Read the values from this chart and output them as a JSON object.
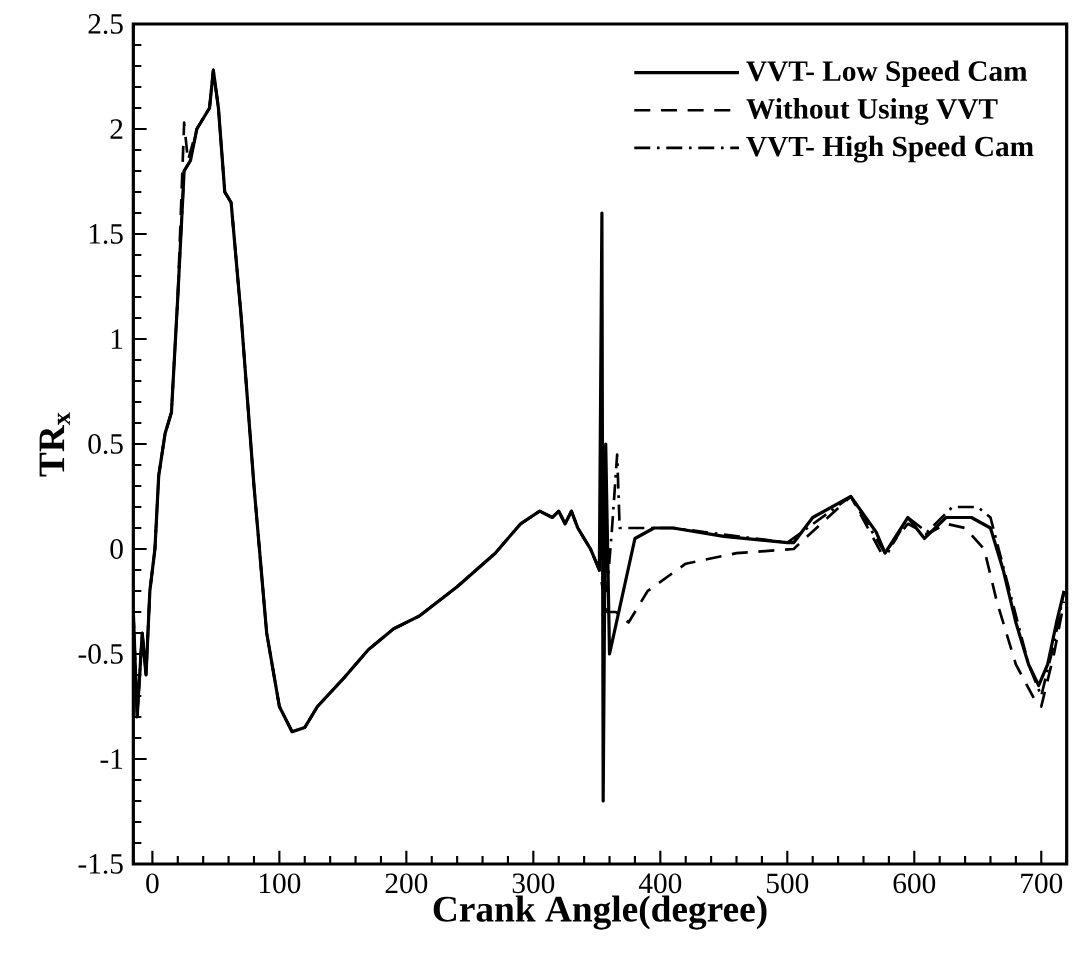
{
  "chart_data": {
    "type": "line",
    "xlabel": "Crank Angle(degree)",
    "ylabel": "TR$_{x}$",
    "xlim": [
      -15,
      720
    ],
    "ylim": [
      -1.5,
      2.5
    ],
    "xticks": [
      0,
      100,
      200,
      300,
      400,
      500,
      600,
      700
    ],
    "yticks": [
      -1.5,
      -1,
      -0.5,
      0,
      0.5,
      1,
      1.5,
      2,
      2.5
    ],
    "legend": "top right",
    "grid": false,
    "marker": "none",
    "series": [
      {
        "name": "VVT- Low Speed Cam",
        "color": "#000000",
        "line_style": "solid",
        "x": [
          -15,
          -12,
          -8,
          -5,
          -2,
          2,
          5,
          10,
          15,
          20,
          25,
          30,
          35,
          40,
          45,
          48,
          52,
          57,
          62,
          70,
          80,
          90,
          100,
          110,
          120,
          130,
          150,
          170,
          190,
          210,
          240,
          270,
          290,
          305,
          315,
          320,
          325,
          330,
          335,
          345,
          352,
          354,
          355,
          357,
          360,
          380,
          395,
          410,
          450,
          500,
          505,
          520,
          550,
          570,
          577,
          595,
          608,
          625,
          645,
          660,
          670,
          680,
          690,
          698,
          705,
          712,
          718
        ],
        "values": [
          -0.3,
          -0.8,
          -0.4,
          -0.6,
          -0.2,
          0,
          0.35,
          0.55,
          0.65,
          1.2,
          1.8,
          1.85,
          2.0,
          2.05,
          2.1,
          2.28,
          2.1,
          1.7,
          1.65,
          1.1,
          0.3,
          -0.4,
          -0.75,
          -0.87,
          -0.85,
          -0.75,
          -0.62,
          -0.48,
          -0.38,
          -0.32,
          -0.18,
          -0.02,
          0.12,
          0.18,
          0.15,
          0.18,
          0.12,
          0.18,
          0.1,
          0.0,
          -0.1,
          1.6,
          -1.2,
          0.5,
          -0.5,
          0.05,
          0.1,
          0.1,
          0.06,
          0.03,
          0.03,
          0.15,
          0.25,
          0.08,
          -0.02,
          0.15,
          0.05,
          0.15,
          0.15,
          0.1,
          -0.1,
          -0.35,
          -0.55,
          -0.65,
          -0.55,
          -0.35,
          -0.2
        ]
      },
      {
        "name": "Without Using VVT",
        "color": "#000000",
        "line_style": "dashed",
        "x": [
          -15,
          -12,
          -8,
          -5,
          -2,
          2,
          5,
          10,
          15,
          20,
          25,
          28,
          35,
          40,
          45,
          48,
          52,
          57,
          62,
          70,
          80,
          90,
          100,
          110,
          120,
          130,
          150,
          170,
          190,
          210,
          240,
          270,
          290,
          305,
          315,
          320,
          325,
          330,
          335,
          345,
          352,
          358,
          365,
          375,
          390,
          420,
          460,
          505,
          550,
          575,
          595,
          610,
          625,
          640,
          655,
          665,
          680,
          695,
          700,
          710,
          718
        ],
        "values": [
          -0.3,
          -0.8,
          -0.4,
          -0.6,
          -0.2,
          0,
          0.35,
          0.55,
          0.65,
          1.2,
          2.03,
          1.85,
          2.0,
          2.05,
          2.1,
          2.28,
          2.1,
          1.7,
          1.65,
          1.1,
          0.3,
          -0.4,
          -0.75,
          -0.87,
          -0.85,
          -0.75,
          -0.62,
          -0.48,
          -0.38,
          -0.32,
          -0.18,
          -0.02,
          0.12,
          0.18,
          0.15,
          0.18,
          0.12,
          0.18,
          0.1,
          0.0,
          -0.1,
          -0.3,
          -0.3,
          -0.35,
          -0.2,
          -0.07,
          -0.02,
          0.0,
          0.25,
          -0.03,
          0.12,
          0.07,
          0.12,
          0.1,
          0.0,
          -0.25,
          -0.55,
          -0.72,
          -0.75,
          -0.5,
          -0.25
        ]
      },
      {
        "name": "VVT- High Speed Cam",
        "color": "#000000",
        "line_style": "dashdot",
        "x": [
          -15,
          -12,
          -8,
          -5,
          -2,
          2,
          5,
          10,
          15,
          20,
          25,
          30,
          35,
          40,
          45,
          48,
          52,
          57,
          62,
          70,
          80,
          90,
          100,
          110,
          120,
          130,
          150,
          170,
          190,
          210,
          240,
          270,
          290,
          305,
          315,
          320,
          325,
          330,
          335,
          345,
          352,
          358,
          362,
          366,
          368,
          380,
          410,
          500,
          550,
          578,
          595,
          610,
          630,
          650,
          660,
          675,
          690,
          700,
          710,
          718
        ],
        "values": [
          -0.3,
          -0.8,
          -0.4,
          -0.6,
          -0.2,
          0,
          0.35,
          0.55,
          0.65,
          1.2,
          1.8,
          1.85,
          2.0,
          2.05,
          2.1,
          2.28,
          2.1,
          1.7,
          1.65,
          1.1,
          0.3,
          -0.4,
          -0.75,
          -0.87,
          -0.85,
          -0.75,
          -0.62,
          -0.48,
          -0.38,
          -0.32,
          -0.18,
          -0.02,
          0.12,
          0.18,
          0.15,
          0.18,
          0.12,
          0.18,
          0.1,
          0.0,
          -0.1,
          -0.2,
          0.1,
          0.45,
          0.1,
          0.1,
          0.1,
          0.03,
          0.25,
          -0.03,
          0.15,
          0.08,
          0.2,
          0.2,
          0.15,
          -0.2,
          -0.55,
          -0.7,
          -0.45,
          -0.2
        ]
      }
    ]
  }
}
